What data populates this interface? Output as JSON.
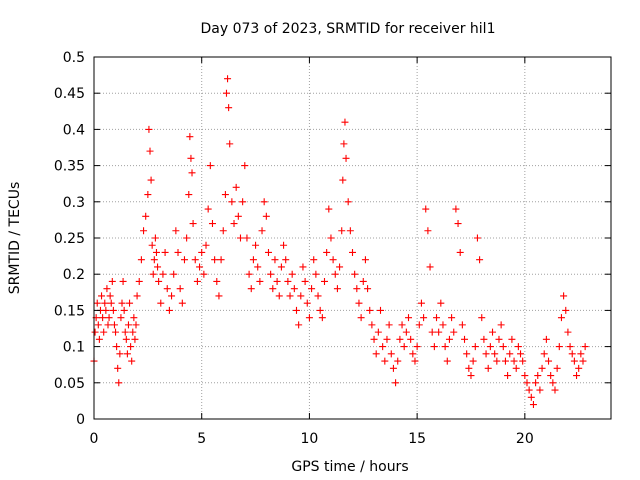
{
  "chart_data": {
    "type": "scatter",
    "title": "Day 073 of 2023, SRMTID for receiver hil1",
    "xlabel": "GPS time / hours",
    "ylabel": "SRMTID / TECUs",
    "xlim": [
      0,
      24
    ],
    "ylim": [
      0,
      0.5
    ],
    "xticks": [
      0,
      5,
      10,
      15,
      20
    ],
    "xtick_labels": [
      "0",
      "5",
      "10",
      "15",
      "20"
    ],
    "yticks": [
      0,
      0.05,
      0.1,
      0.15,
      0.2,
      0.25,
      0.3,
      0.35,
      0.4,
      0.45,
      0.5
    ],
    "ytick_labels": [
      "0",
      "0.05",
      "0.1",
      "0.15",
      "0.2",
      "0.25",
      "0.3",
      "0.35",
      "0.4",
      "0.45",
      "0.5"
    ],
    "grid": true,
    "marker": "plus",
    "color": "#ff0000",
    "series": [
      {
        "name": "SRMTID",
        "x": [
          0.0,
          0.05,
          0.1,
          0.15,
          0.2,
          0.25,
          0.3,
          0.35,
          0.4,
          0.45,
          0.5,
          0.55,
          0.6,
          0.65,
          0.7,
          0.75,
          0.8,
          0.85,
          0.9,
          0.95,
          1.0,
          1.05,
          1.1,
          1.15,
          1.2,
          1.25,
          1.3,
          1.35,
          1.4,
          1.45,
          1.5,
          1.55,
          1.6,
          1.65,
          1.7,
          1.75,
          1.8,
          1.85,
          1.9,
          1.95,
          2.0,
          2.1,
          2.2,
          2.3,
          2.4,
          2.5,
          2.55,
          2.6,
          2.65,
          2.7,
          2.75,
          2.8,
          2.85,
          2.9,
          2.95,
          3.0,
          3.1,
          3.2,
          3.3,
          3.4,
          3.5,
          3.6,
          3.7,
          3.8,
          3.9,
          4.0,
          4.1,
          4.2,
          4.3,
          4.4,
          4.45,
          4.5,
          4.55,
          4.6,
          4.7,
          4.8,
          4.9,
          5.0,
          5.1,
          5.2,
          5.3,
          5.4,
          5.5,
          5.6,
          5.7,
          5.8,
          5.9,
          6.0,
          6.1,
          6.15,
          6.2,
          6.25,
          6.3,
          6.4,
          6.5,
          6.6,
          6.7,
          6.8,
          6.9,
          7.0,
          7.1,
          7.2,
          7.3,
          7.4,
          7.5,
          7.6,
          7.7,
          7.8,
          7.9,
          8.0,
          8.1,
          8.2,
          8.3,
          8.4,
          8.5,
          8.6,
          8.7,
          8.8,
          8.9,
          9.0,
          9.1,
          9.2,
          9.3,
          9.4,
          9.5,
          9.6,
          9.7,
          9.8,
          9.9,
          10.0,
          10.1,
          10.2,
          10.3,
          10.4,
          10.5,
          10.6,
          10.7,
          10.8,
          10.9,
          11.0,
          11.1,
          11.2,
          11.3,
          11.4,
          11.5,
          11.55,
          11.6,
          11.65,
          11.7,
          11.8,
          11.9,
          12.0,
          12.1,
          12.2,
          12.3,
          12.4,
          12.5,
          12.6,
          12.7,
          12.8,
          12.9,
          13.0,
          13.1,
          13.2,
          13.3,
          13.4,
          13.5,
          13.6,
          13.7,
          13.8,
          13.9,
          14.0,
          14.1,
          14.2,
          14.3,
          14.4,
          14.5,
          14.6,
          14.7,
          14.8,
          14.9,
          15.0,
          15.1,
          15.2,
          15.3,
          15.4,
          15.5,
          15.6,
          15.7,
          15.8,
          15.9,
          16.0,
          16.1,
          16.2,
          16.3,
          16.4,
          16.5,
          16.6,
          16.7,
          16.8,
          16.9,
          17.0,
          17.1,
          17.2,
          17.3,
          17.4,
          17.5,
          17.6,
          17.7,
          17.8,
          17.9,
          18.0,
          18.1,
          18.2,
          18.3,
          18.4,
          18.5,
          18.6,
          18.7,
          18.8,
          18.9,
          19.0,
          19.1,
          19.2,
          19.3,
          19.4,
          19.5,
          19.6,
          19.7,
          19.8,
          19.9,
          20.0,
          20.1,
          20.2,
          20.3,
          20.4,
          20.5,
          20.6,
          20.7,
          20.8,
          20.9,
          21.0,
          21.1,
          21.2,
          21.3,
          21.4,
          21.5,
          21.6,
          21.7,
          21.8,
          21.9,
          22.0,
          22.1,
          22.2,
          22.3,
          22.4,
          22.5,
          22.6,
          22.7,
          22.8
        ],
        "y": [
          0.08,
          0.12,
          0.14,
          0.16,
          0.13,
          0.11,
          0.15,
          0.17,
          0.14,
          0.12,
          0.16,
          0.15,
          0.18,
          0.13,
          0.14,
          0.17,
          0.16,
          0.19,
          0.15,
          0.13,
          0.12,
          0.1,
          0.07,
          0.05,
          0.09,
          0.14,
          0.16,
          0.19,
          0.15,
          0.12,
          0.11,
          0.09,
          0.13,
          0.16,
          0.1,
          0.08,
          0.12,
          0.14,
          0.11,
          0.13,
          0.17,
          0.19,
          0.22,
          0.26,
          0.28,
          0.31,
          0.4,
          0.37,
          0.33,
          0.24,
          0.2,
          0.22,
          0.25,
          0.23,
          0.21,
          0.19,
          0.16,
          0.2,
          0.23,
          0.18,
          0.15,
          0.17,
          0.2,
          0.26,
          0.23,
          0.18,
          0.16,
          0.22,
          0.25,
          0.31,
          0.39,
          0.36,
          0.34,
          0.27,
          0.22,
          0.19,
          0.21,
          0.23,
          0.2,
          0.24,
          0.29,
          0.35,
          0.27,
          0.22,
          0.19,
          0.17,
          0.22,
          0.26,
          0.31,
          0.45,
          0.47,
          0.43,
          0.38,
          0.3,
          0.27,
          0.32,
          0.28,
          0.25,
          0.3,
          0.35,
          0.25,
          0.2,
          0.18,
          0.22,
          0.24,
          0.21,
          0.19,
          0.26,
          0.3,
          0.28,
          0.23,
          0.2,
          0.18,
          0.22,
          0.19,
          0.17,
          0.21,
          0.24,
          0.22,
          0.19,
          0.17,
          0.2,
          0.18,
          0.15,
          0.13,
          0.17,
          0.21,
          0.19,
          0.16,
          0.14,
          0.18,
          0.22,
          0.2,
          0.17,
          0.15,
          0.14,
          0.19,
          0.23,
          0.29,
          0.25,
          0.22,
          0.2,
          0.18,
          0.21,
          0.26,
          0.33,
          0.38,
          0.41,
          0.36,
          0.3,
          0.26,
          0.23,
          0.2,
          0.18,
          0.16,
          0.14,
          0.19,
          0.22,
          0.18,
          0.15,
          0.13,
          0.11,
          0.09,
          0.12,
          0.15,
          0.1,
          0.08,
          0.11,
          0.13,
          0.09,
          0.07,
          0.05,
          0.08,
          0.11,
          0.13,
          0.1,
          0.12,
          0.14,
          0.11,
          0.09,
          0.08,
          0.1,
          0.13,
          0.16,
          0.14,
          0.29,
          0.26,
          0.21,
          0.12,
          0.1,
          0.14,
          0.12,
          0.16,
          0.13,
          0.1,
          0.08,
          0.11,
          0.14,
          0.12,
          0.29,
          0.27,
          0.23,
          0.13,
          0.11,
          0.09,
          0.07,
          0.06,
          0.08,
          0.1,
          0.25,
          0.22,
          0.14,
          0.11,
          0.09,
          0.07,
          0.1,
          0.12,
          0.09,
          0.08,
          0.11,
          0.13,
          0.1,
          0.08,
          0.06,
          0.09,
          0.11,
          0.08,
          0.07,
          0.1,
          0.09,
          0.08,
          0.06,
          0.05,
          0.04,
          0.03,
          0.02,
          0.05,
          0.06,
          0.04,
          0.07,
          0.09,
          0.11,
          0.08,
          0.06,
          0.05,
          0.04,
          0.07,
          0.1,
          0.14,
          0.17,
          0.15,
          0.12,
          0.1,
          0.09,
          0.08,
          0.06,
          0.07,
          0.09,
          0.08,
          0.1
        ]
      }
    ]
  }
}
